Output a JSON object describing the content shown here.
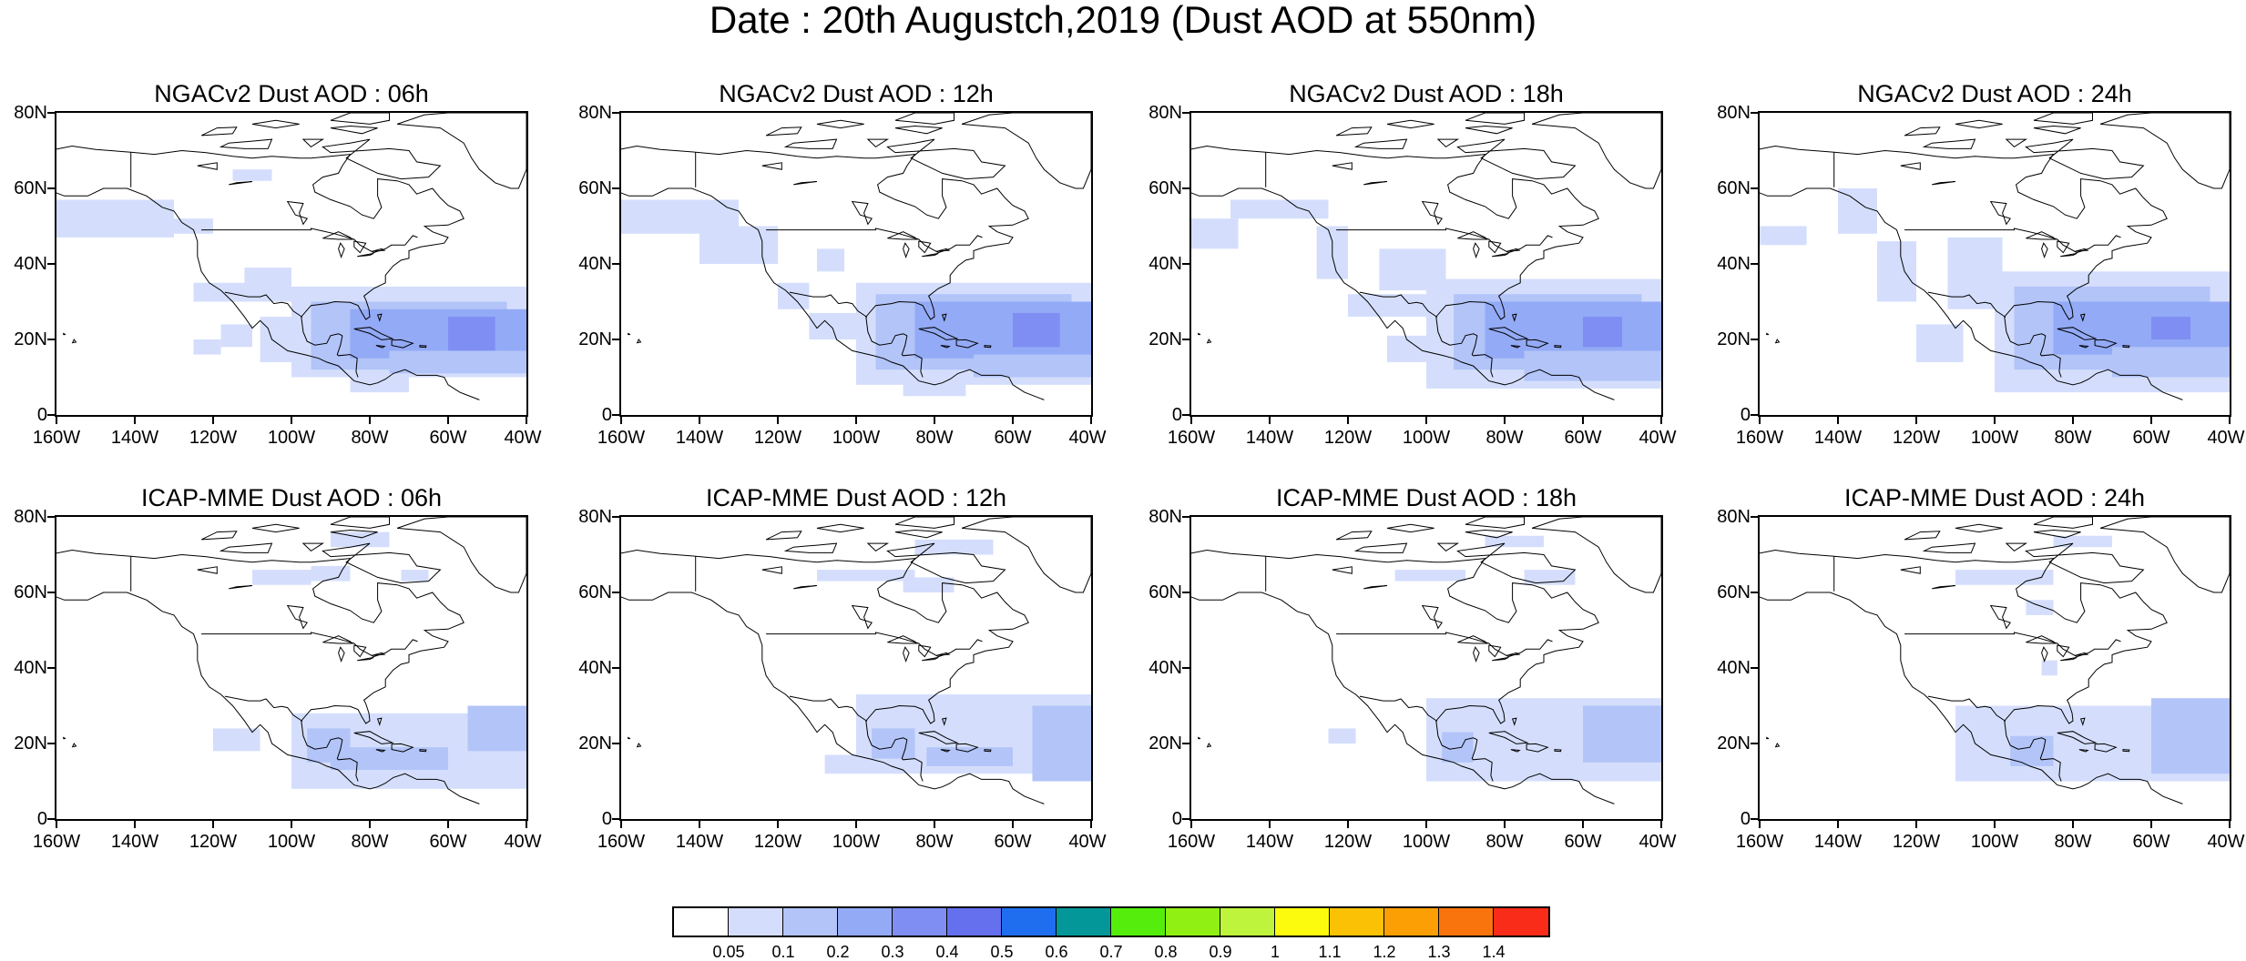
{
  "title": "Date : 20th Augustch,2019 (Dust AOD at 550nm)",
  "panels": [
    {
      "title": "NGACv2 Dust AOD : 06h",
      "model": "NGACv2",
      "hour": "06h"
    },
    {
      "title": "NGACv2 Dust AOD : 12h",
      "model": "NGACv2",
      "hour": "12h"
    },
    {
      "title": "NGACv2 Dust AOD : 18h",
      "model": "NGACv2",
      "hour": "18h"
    },
    {
      "title": "NGACv2 Dust AOD : 24h",
      "model": "NGACv2",
      "hour": "24h"
    },
    {
      "title": "ICAP-MME Dust AOD : 06h",
      "model": "ICAP-MME",
      "hour": "06h"
    },
    {
      "title": "ICAP-MME Dust AOD : 12h",
      "model": "ICAP-MME",
      "hour": "12h"
    },
    {
      "title": "ICAP-MME Dust AOD : 18h",
      "model": "ICAP-MME",
      "hour": "18h"
    },
    {
      "title": "ICAP-MME Dust AOD : 24h",
      "model": "ICAP-MME",
      "hour": "24h"
    }
  ],
  "lat_labels": [
    "80N",
    "60N",
    "40N",
    "20N",
    "0"
  ],
  "lon_labels": [
    "160W",
    "140W",
    "120W",
    "100W",
    "80W",
    "60W",
    "40W"
  ],
  "colorbar": {
    "labels": [
      "0.05",
      "0.1",
      "0.2",
      "0.3",
      "0.4",
      "0.5",
      "0.6",
      "0.7",
      "0.8",
      "0.9",
      "1",
      "1.1",
      "1.2",
      "1.3",
      "1.4"
    ],
    "colors": [
      "#ffffff",
      "#d4defc",
      "#b2c4f8",
      "#93aaf6",
      "#7f8ef2",
      "#6470ee",
      "#1f6ef0",
      "#04979a",
      "#55ee0c",
      "#90f013",
      "#bff43c",
      "#fcfb0e",
      "#fbc105",
      "#fb9f04",
      "#f9740c",
      "#f82c18"
    ]
  },
  "colors": {
    "coast": "#000000",
    "dust_light": "#d4defc",
    "dust_mid": "#b2c4f8",
    "dust_high": "#93aaf6",
    "dust_peak": "#7f8ef2"
  }
}
